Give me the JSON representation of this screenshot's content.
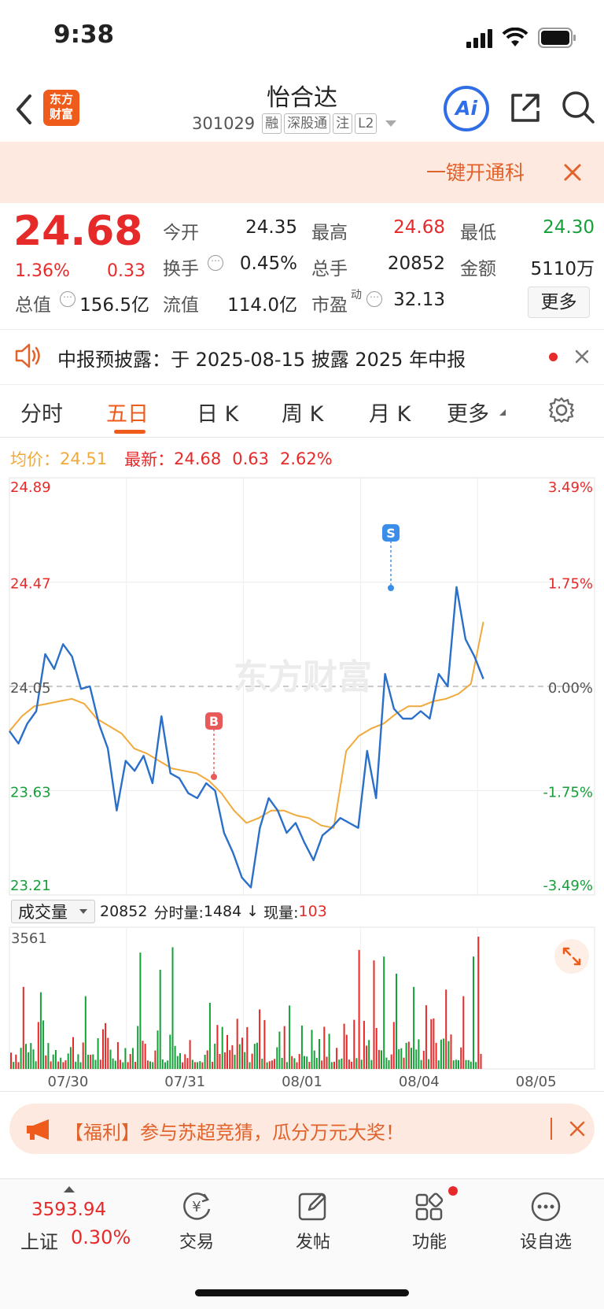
{
  "status_bar": {
    "time": "9:38"
  },
  "header": {
    "logo_line1": "东方",
    "logo_line2": "财富",
    "title": "怡合达",
    "code": "301029",
    "badges": [
      "融",
      "深股通",
      "注",
      "L2"
    ],
    "ai_label": "Ai"
  },
  "promo_banner": {
    "text": "一键开通科"
  },
  "quote": {
    "price": "24.68",
    "change_pct": "1.36%",
    "change": "0.33",
    "stats": [
      {
        "label": "今开",
        "value": "24.35",
        "color": "#222"
      },
      {
        "label": "最高",
        "value": "24.68",
        "color": "#e62a2a"
      },
      {
        "label": "最低",
        "value": "24.30",
        "color": "#16a03a"
      },
      {
        "label": "换手",
        "value": "0.45%",
        "color": "#222"
      },
      {
        "label": "总手",
        "value": "20852",
        "color": "#222"
      },
      {
        "label": "金额",
        "value": "5110万",
        "color": "#222"
      },
      {
        "label": "总值",
        "value": "156.5亿",
        "color": "#222"
      },
      {
        "label": "流值",
        "value": "114.0亿",
        "color": "#222"
      },
      {
        "label": "市盈",
        "value": "32.13",
        "color": "#222"
      }
    ],
    "pe_sup": "动",
    "more_label": "更多"
  },
  "notice": {
    "text": "中报预披露：于 2025-08-15 披露 2025 年中报"
  },
  "tabs": {
    "items": [
      "分时",
      "五日",
      "日 K",
      "周 K",
      "月 K",
      "更多"
    ],
    "active_index": 1
  },
  "chart_info": {
    "avg_label": "均价：",
    "avg_value": "24.51",
    "latest_label": "最新：",
    "latest_value": "24.68",
    "latest_change": "0.63",
    "latest_pct": "2.62%"
  },
  "chart_data": {
    "type": "line",
    "y_labels_left": [
      "24.89",
      "24.47",
      "24.05",
      "23.63",
      "23.21"
    ],
    "y_labels_right": [
      "3.49%",
      "1.75%",
      "0.00%",
      "-1.75%",
      "-3.49%"
    ],
    "ylim": [
      23.21,
      24.89
    ],
    "reference": 24.05,
    "x_labels": [
      "07/30",
      "07/31",
      "08/01",
      "08/04",
      "08/05"
    ],
    "series": [
      {
        "values": [
          23.87,
          23.82,
          23.9,
          23.95,
          24.18,
          24.12,
          24.22,
          24.17,
          24.04,
          24.05,
          23.9,
          23.8,
          23.55,
          23.75,
          23.71,
          23.77,
          23.66,
          23.93,
          23.7,
          23.68,
          23.62,
          23.6,
          23.66,
          23.63,
          23.46,
          23.38,
          23.28,
          23.24,
          23.48,
          23.6,
          23.55,
          23.46,
          23.5,
          23.42,
          23.35,
          23.45,
          23.48,
          23.52,
          23.5,
          23.48,
          23.79,
          23.6,
          24.1,
          23.96,
          23.92,
          23.92,
          23.95,
          23.92,
          24.1,
          24.05,
          24.45,
          24.24,
          24.17,
          24.08
        ],
        "color": "#2a6fc9"
      },
      {
        "values": [
          23.87,
          23.93,
          23.97,
          23.98,
          23.99,
          24.0,
          23.98,
          23.92,
          23.89,
          23.86,
          23.8,
          23.78,
          23.75,
          23.72,
          23.71,
          23.7,
          23.67,
          23.62,
          23.55,
          23.5,
          23.52,
          23.55,
          23.55,
          23.53,
          23.52,
          23.49,
          23.48,
          23.79,
          23.85,
          23.88,
          23.9,
          23.94,
          23.97,
          23.97,
          23.99,
          24.0,
          24.02,
          24.06,
          24.31
        ],
        "color": "#f2a93b"
      }
    ],
    "markers": [
      {
        "label": "B",
        "color": "#e85a5a"
      },
      {
        "label": "S",
        "color": "#3a8de8"
      }
    ]
  },
  "volume": {
    "selector_label": "成交量",
    "info_total": "20852",
    "info_label": "分时量: ",
    "info_value": "1484",
    "arrow": "↓",
    "now_label": "现量: ",
    "now_value": "103",
    "max_label": "3561"
  },
  "ad": {
    "text": "【福利】参与苏超竞猜，瓜分万元大奖！"
  },
  "bottom_bar": {
    "index_value": "3593.94",
    "index_name": "上证",
    "index_pct": "0.30%",
    "items": [
      "交易",
      "发帖",
      "功能",
      "设自选"
    ],
    "trade_glyph": "¥"
  }
}
